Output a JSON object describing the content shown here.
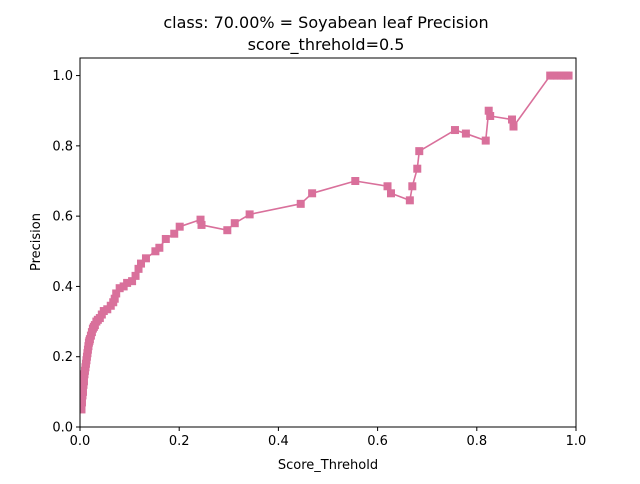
{
  "chart_data": {
    "type": "line",
    "title_line1": "class: 70.00% = Soyabean leaf Precision",
    "title_line2": "score_threhold=0.5",
    "xlabel": "Score_Threhold",
    "ylabel": "Precision",
    "xlim": [
      0,
      1
    ],
    "ylim": [
      0,
      1.05
    ],
    "x_ticks": [
      {
        "value": 0.0,
        "label": "0.0"
      },
      {
        "value": 0.2,
        "label": "0.2"
      },
      {
        "value": 0.4,
        "label": "0.4"
      },
      {
        "value": 0.6,
        "label": "0.6"
      },
      {
        "value": 0.8,
        "label": "0.8"
      },
      {
        "value": 1.0,
        "label": "1.0"
      }
    ],
    "y_ticks": [
      {
        "value": 0.0,
        "label": "0.0"
      },
      {
        "value": 0.2,
        "label": "0.2"
      },
      {
        "value": 0.4,
        "label": "0.4"
      },
      {
        "value": 0.6,
        "label": "0.6"
      },
      {
        "value": 0.8,
        "label": "0.8"
      },
      {
        "value": 1.0,
        "label": "1.0"
      }
    ],
    "grid": false,
    "marker": "square",
    "color": "#d9709b",
    "series": [
      {
        "x": [
          0.003,
          0.004,
          0.005,
          0.006,
          0.007,
          0.008,
          0.009,
          0.01,
          0.011,
          0.012,
          0.013,
          0.014,
          0.015,
          0.016,
          0.017,
          0.018,
          0.019,
          0.02,
          0.022,
          0.024,
          0.026,
          0.028,
          0.03,
          0.033,
          0.036,
          0.04,
          0.044,
          0.048,
          0.055,
          0.062,
          0.067,
          0.07,
          0.073,
          0.08,
          0.088,
          0.095,
          0.105,
          0.112,
          0.118,
          0.123,
          0.133,
          0.152,
          0.16,
          0.173,
          0.19,
          0.201,
          0.243,
          0.245,
          0.297,
          0.312,
          0.342,
          0.445,
          0.468,
          0.555,
          0.62,
          0.627,
          0.665,
          0.67,
          0.68,
          0.684,
          0.756,
          0.778,
          0.818,
          0.824,
          0.827,
          0.871,
          0.874,
          0.948,
          0.955,
          0.962,
          0.97,
          0.976,
          0.98,
          0.985
        ],
        "y": [
          0.05,
          0.07,
          0.09,
          0.1,
          0.12,
          0.13,
          0.15,
          0.16,
          0.17,
          0.18,
          0.19,
          0.2,
          0.21,
          0.22,
          0.23,
          0.24,
          0.245,
          0.25,
          0.26,
          0.27,
          0.28,
          0.285,
          0.29,
          0.3,
          0.305,
          0.31,
          0.32,
          0.33,
          0.335,
          0.345,
          0.355,
          0.365,
          0.38,
          0.395,
          0.4,
          0.41,
          0.415,
          0.43,
          0.45,
          0.465,
          0.48,
          0.5,
          0.51,
          0.535,
          0.55,
          0.57,
          0.59,
          0.575,
          0.56,
          0.58,
          0.605,
          0.635,
          0.665,
          0.7,
          0.685,
          0.665,
          0.645,
          0.685,
          0.735,
          0.785,
          0.845,
          0.835,
          0.815,
          0.9,
          0.885,
          0.875,
          0.855,
          1.0,
          1.0,
          1.0,
          1.0,
          1.0,
          1.0,
          1.0
        ]
      }
    ]
  }
}
